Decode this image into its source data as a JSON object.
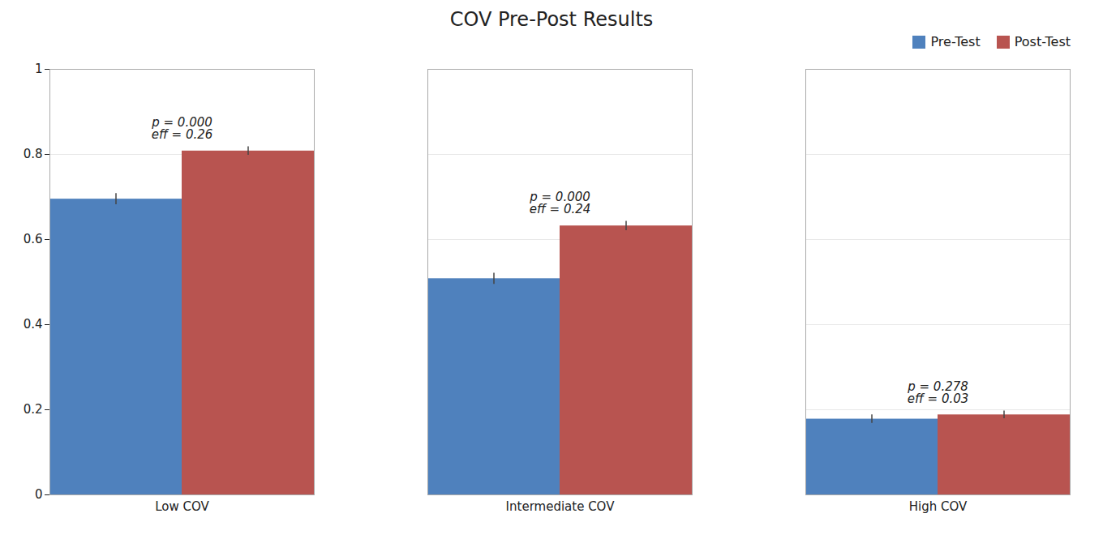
{
  "chart_data": {
    "type": "bar",
    "title": "COV Pre-Post Results",
    "categories": [
      "Low COV",
      "Intermediate COV",
      "High COV"
    ],
    "series": [
      {
        "name": "Pre-Test",
        "color": "#4F81BD",
        "values": [
          0.695,
          0.508,
          0.178
        ],
        "errors": [
          0.013,
          0.013,
          0.01
        ]
      },
      {
        "name": "Post-Test",
        "color": "#B85450",
        "values": [
          0.808,
          0.632,
          0.188
        ],
        "errors": [
          0.01,
          0.011,
          0.009
        ]
      }
    ],
    "annotations": [
      {
        "category": "Low COV",
        "text": [
          "p = 0.000",
          "eff = 0.26"
        ]
      },
      {
        "category": "Intermediate COV",
        "text": [
          "p = 0.000",
          "eff = 0.24"
        ]
      },
      {
        "category": "High COV",
        "text": [
          "p = 0.278",
          "eff = 0.03"
        ]
      }
    ],
    "ylim": [
      0,
      1.0
    ],
    "yticks": [
      0,
      0.2,
      0.4,
      0.6,
      0.8,
      1
    ],
    "grid": true,
    "legend": "upper right"
  }
}
